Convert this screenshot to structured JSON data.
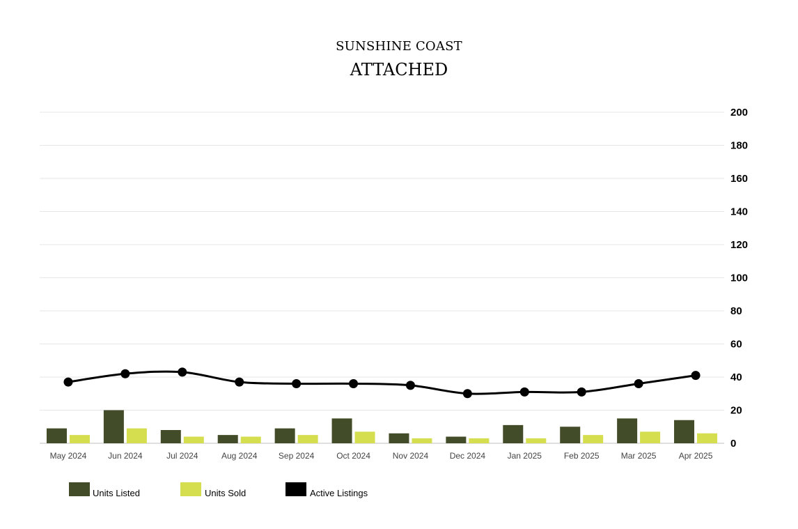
{
  "title_line1": "SUNSHINE COAST",
  "title_line2": "ATTACHED",
  "colors": {
    "units_listed": "#434c28",
    "units_sold": "#d4de4e",
    "active_listings": "#000000",
    "grid": "#e6e6e6"
  },
  "chart_data": {
    "type": "bar",
    "categories": [
      "May 2024",
      "Jun 2024",
      "Jul 2024",
      "Aug 2024",
      "Sep 2024",
      "Oct 2024",
      "Nov 2024",
      "Dec 2024",
      "Jan 2025",
      "Feb 2025",
      "Mar 2025",
      "Apr 2025"
    ],
    "series": [
      {
        "name": "Units Listed",
        "type": "bar",
        "values": [
          9,
          20,
          8,
          5,
          9,
          15,
          6,
          4,
          11,
          10,
          15,
          14
        ]
      },
      {
        "name": "Units Sold",
        "type": "bar",
        "values": [
          5,
          9,
          4,
          4,
          5,
          7,
          3,
          3,
          3,
          5,
          7,
          6
        ]
      },
      {
        "name": "Active Listings",
        "type": "line",
        "values": [
          37,
          42,
          43,
          37,
          36,
          36,
          35,
          30,
          31,
          31,
          36,
          41
        ]
      }
    ],
    "ylim": [
      0,
      200
    ],
    "yticks": [
      "0",
      "20",
      "40",
      "60",
      "80",
      "100",
      "120",
      "140",
      "160",
      "180",
      "200"
    ],
    "y_axis_side": "right",
    "grid": true,
    "legend_position": "bottom-left"
  }
}
